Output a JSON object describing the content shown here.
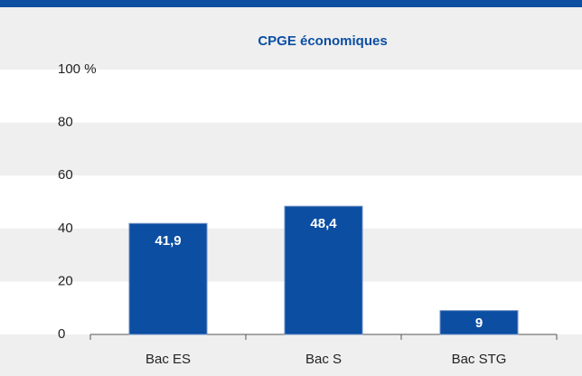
{
  "chart_data": {
    "type": "bar",
    "title": "CPGE économiques",
    "categories": [
      "Bac ES",
      "Bac S",
      "Bac STG"
    ],
    "values": [
      41.9,
      48.4,
      9
    ],
    "value_labels": [
      "41,9",
      "48,4",
      "9"
    ],
    "color": "#0b4ea2",
    "ylim": [
      0,
      100
    ],
    "yticks": [
      0,
      20,
      40,
      60,
      80,
      {
        "value": 100,
        "label": "100 %"
      }
    ]
  }
}
